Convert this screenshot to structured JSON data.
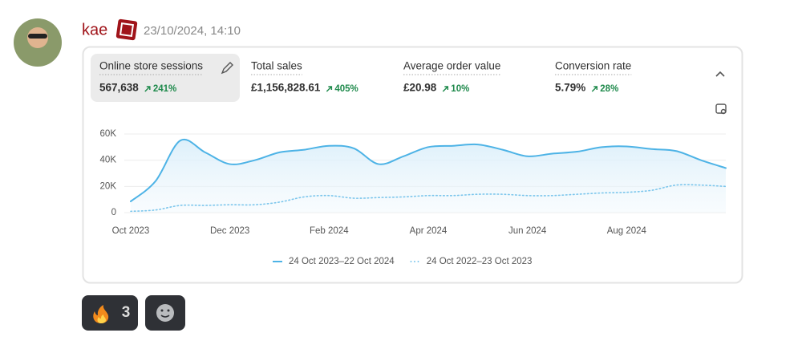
{
  "message": {
    "author": "kae",
    "timestamp": "23/10/2024, 14:10"
  },
  "metrics": [
    {
      "label": "Online store sessions",
      "value": "567,638",
      "change": "241%"
    },
    {
      "label": "Total sales",
      "value": "£1,156,828.61",
      "change": "405%"
    },
    {
      "label": "Average order value",
      "value": "£20.98",
      "change": "10%"
    },
    {
      "label": "Conversion rate",
      "value": "5.79%",
      "change": "28%"
    }
  ],
  "chart_data": {
    "type": "line",
    "categories": [
      "Oct 2023",
      null,
      null,
      null,
      "Dec 2023",
      null,
      null,
      null,
      "Feb 2024",
      null,
      null,
      null,
      "Apr 2024",
      null,
      null,
      null,
      "Jun 2024",
      null,
      null,
      null,
      "Aug 2024",
      null,
      null,
      null,
      null
    ],
    "series": [
      {
        "name": "24 Oct 2023–22 Oct 2024",
        "color": "#4db3e6",
        "style": "solid",
        "values": [
          8600,
          24000,
          55000,
          46000,
          37000,
          40000,
          46000,
          48000,
          51000,
          49000,
          37000,
          43000,
          50000,
          51000,
          52000,
          48000,
          43000,
          45000,
          46500,
          50000,
          50500,
          48500,
          47000,
          40000,
          34000
        ]
      },
      {
        "name": "24 Oct 2022–23 Oct 2023",
        "color": "#7cc6ec",
        "style": "dotted",
        "values": [
          1000,
          2000,
          5500,
          5500,
          6000,
          6000,
          8000,
          12000,
          13000,
          11000,
          11500,
          12000,
          13000,
          13000,
          14000,
          14000,
          13000,
          13000,
          14000,
          15000,
          15500,
          17000,
          21000,
          21000,
          20000
        ]
      }
    ],
    "ylim": [
      0,
      60000
    ],
    "yticks": [
      {
        "value": 0,
        "label": "0"
      },
      {
        "value": 20000,
        "label": "20K"
      },
      {
        "value": 40000,
        "label": "40K"
      },
      {
        "value": 60000,
        "label": "60K"
      }
    ],
    "grid": true
  },
  "reactions": [
    {
      "count": 3
    }
  ]
}
